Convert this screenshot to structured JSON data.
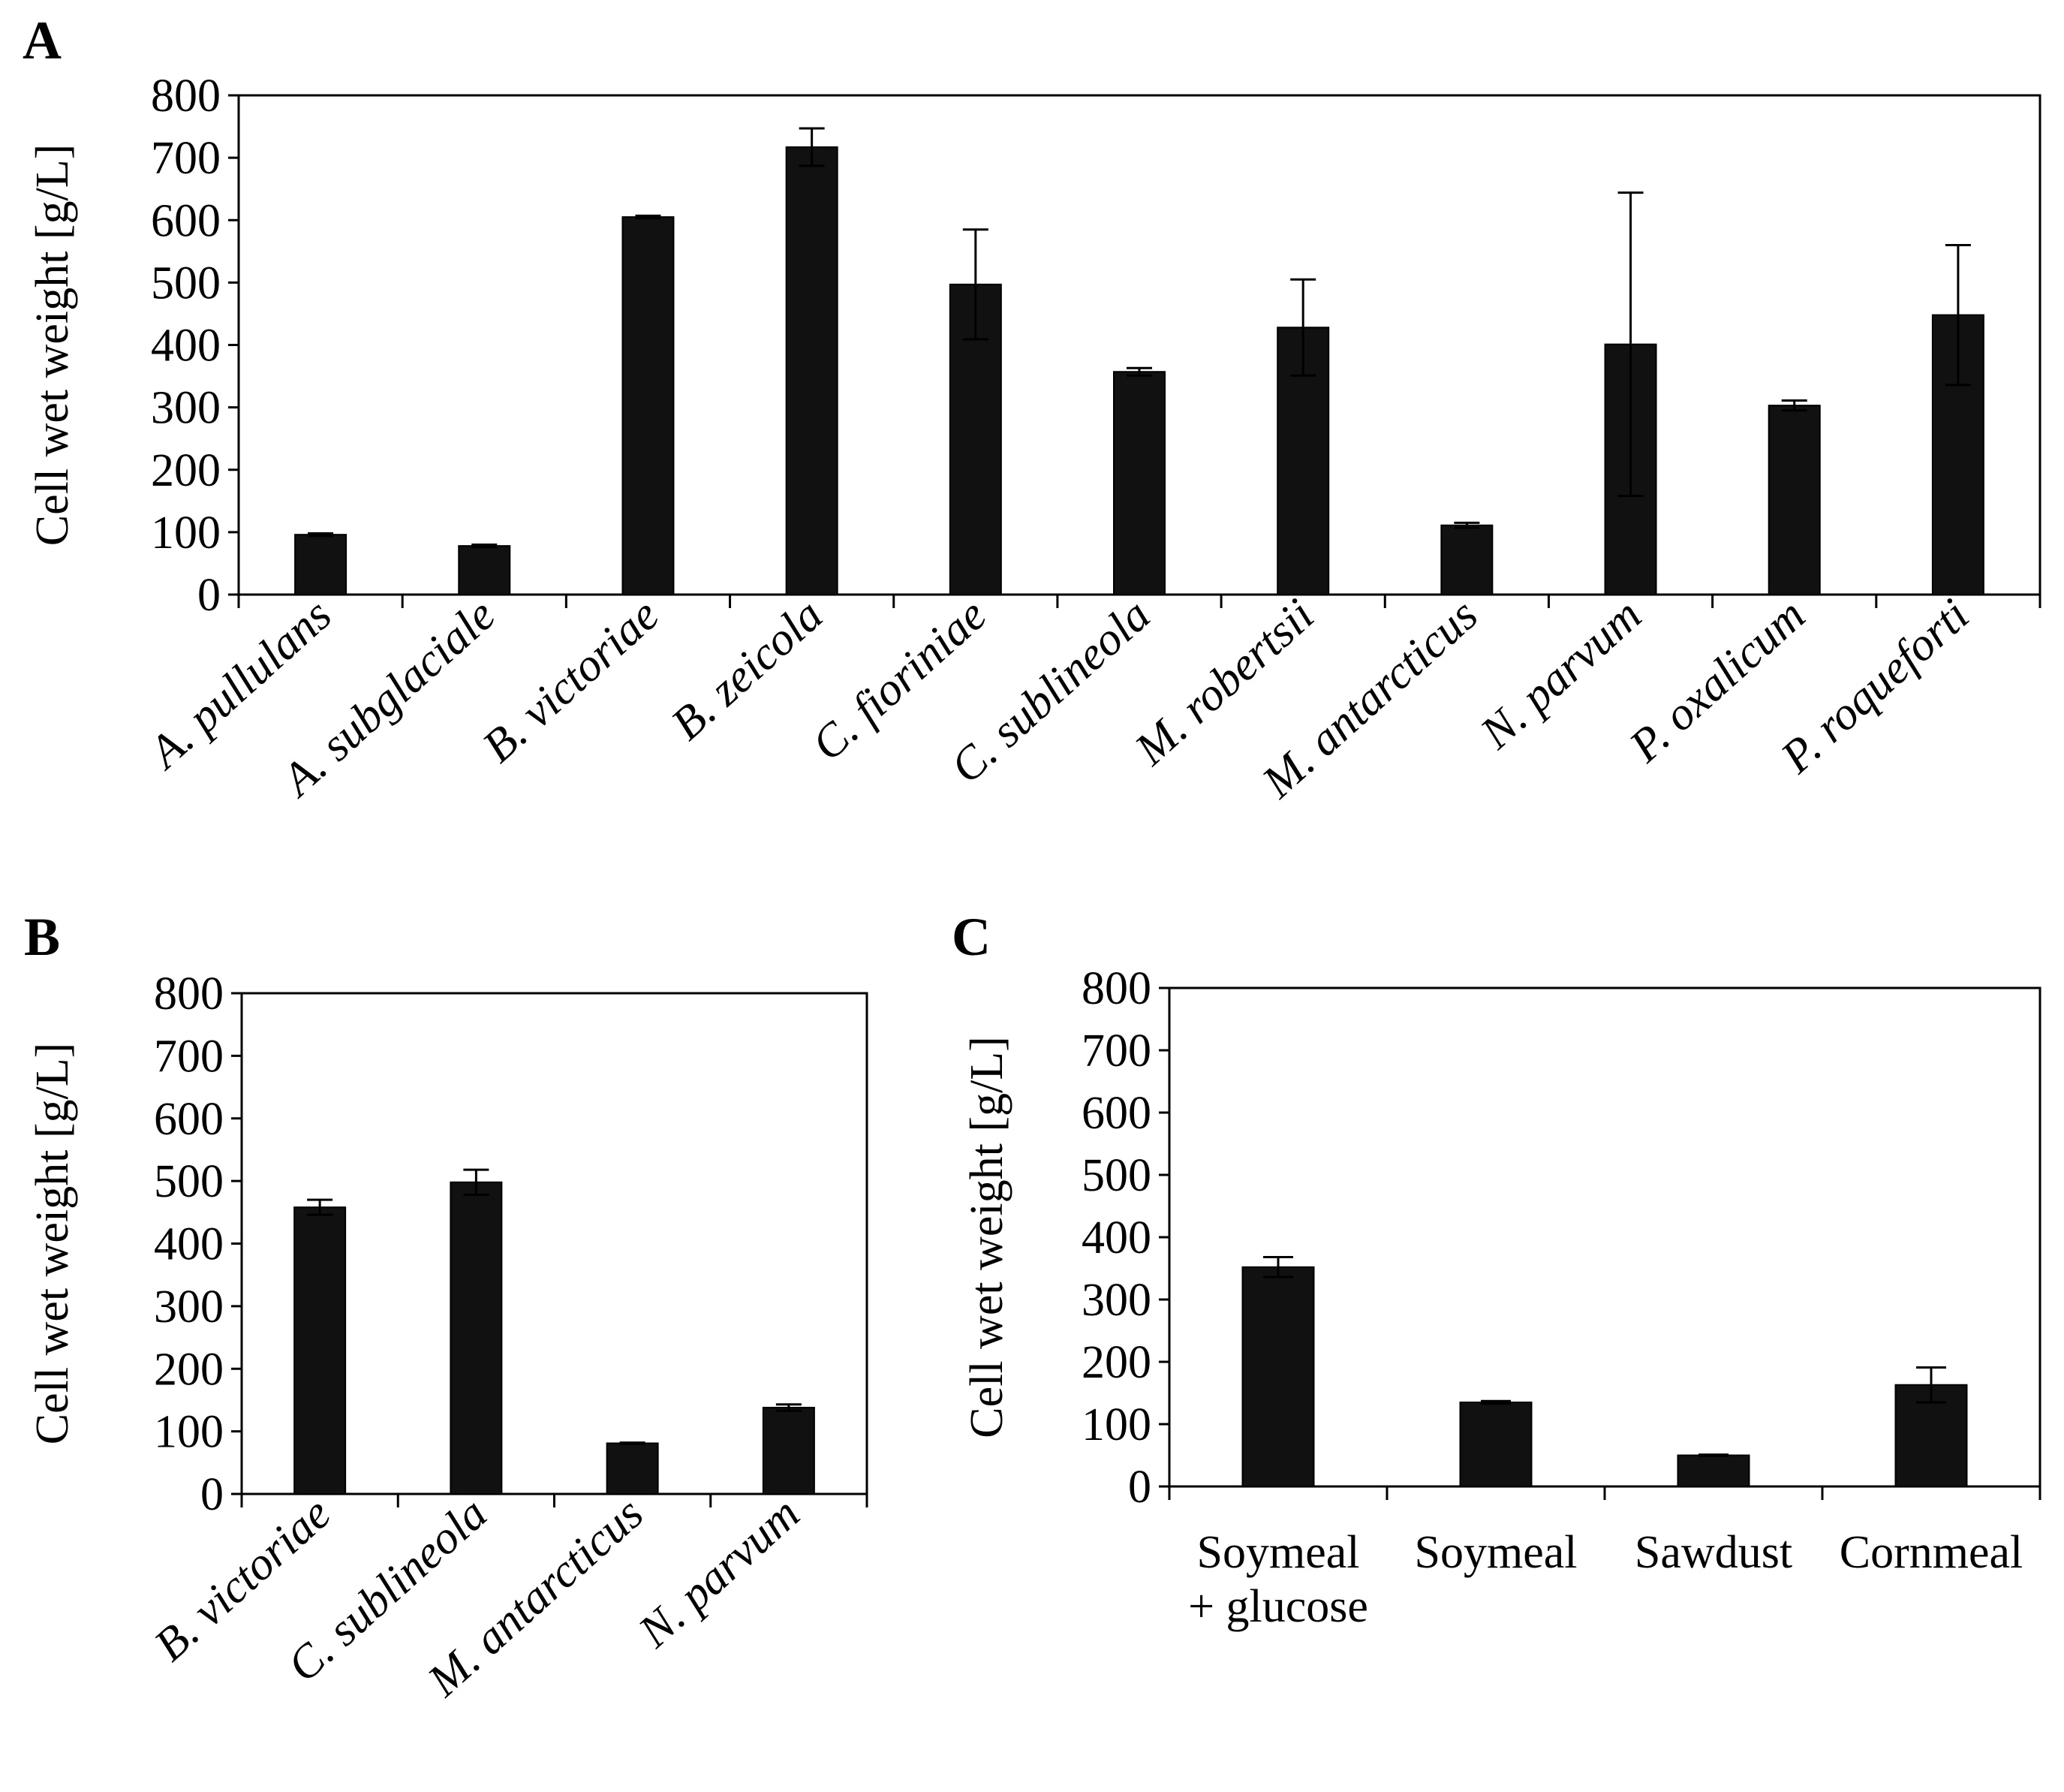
{
  "chart_data": [
    {
      "panel": "A",
      "type": "bar",
      "title": "",
      "xlabel": "",
      "ylabel": "Cell wet weight [g/L]",
      "ylim": [
        0,
        800
      ],
      "yticks": [
        0,
        100,
        200,
        300,
        400,
        500,
        600,
        700,
        800
      ],
      "grid": false,
      "label_style": "italic",
      "label_rotation": "angled",
      "color": "#111111",
      "categories": [
        "A. pullulans",
        "A. subglaciale",
        "B. victoriae",
        "B. zeicola",
        "C. fioriniae",
        "C. sublineola",
        "M. robertsii",
        "M. antarcticus",
        "N. parvum",
        "P. oxalicum",
        "P. roqueforti"
      ],
      "values": [
        96,
        78,
        605,
        717,
        497,
        357,
        428,
        111,
        401,
        303,
        448
      ],
      "errors": [
        2,
        2,
        2,
        30,
        88,
        6,
        77,
        4,
        243,
        8,
        112
      ]
    },
    {
      "panel": "B",
      "type": "bar",
      "title": "",
      "xlabel": "",
      "ylabel": "Cell wet weight [g/L]",
      "ylim": [
        0,
        800
      ],
      "yticks": [
        0,
        100,
        200,
        300,
        400,
        500,
        600,
        700,
        800
      ],
      "grid": false,
      "label_style": "italic",
      "label_rotation": "angled",
      "color": "#111111",
      "categories": [
        "B. victoriae",
        "C. sublineola",
        "M. antarcticus",
        "N. parvum"
      ],
      "values": [
        458,
        498,
        81,
        138
      ],
      "errors": [
        12,
        20,
        1,
        5
      ]
    },
    {
      "panel": "C",
      "type": "bar",
      "title": "",
      "xlabel": "",
      "ylabel": "Cell wet weight [g/L]",
      "ylim": [
        0,
        800
      ],
      "yticks": [
        0,
        100,
        200,
        300,
        400,
        500,
        600,
        700,
        800
      ],
      "grid": false,
      "label_style": "normal",
      "label_rotation": "none",
      "color": "#111111",
      "categories": [
        "Soymeal + glucose",
        "Soymeal",
        "Sawdust",
        "Cornmeal"
      ],
      "category_lines": [
        [
          "Soymeal",
          "+ glucose"
        ],
        [
          "Soymeal"
        ],
        [
          "Sawdust"
        ],
        [
          "Cornmeal"
        ]
      ],
      "values": [
        352,
        135,
        50,
        163
      ],
      "errors": [
        16,
        2,
        1,
        28
      ]
    }
  ]
}
